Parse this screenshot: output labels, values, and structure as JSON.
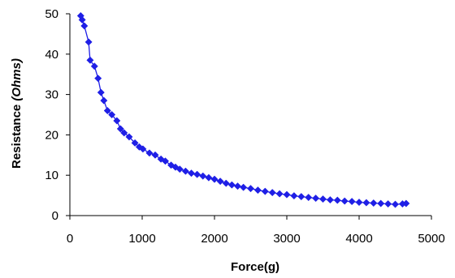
{
  "chart_data": {
    "type": "line",
    "title": "",
    "xlabel": "Force(g)",
    "ylabel_prefix": "Resistance ",
    "ylabel_unit": "(Ohms)",
    "xlim": [
      0,
      5000
    ],
    "ylim": [
      0,
      50
    ],
    "x_ticks": [
      "0",
      "1000",
      "2000",
      "3000",
      "4000",
      "5000"
    ],
    "y_ticks": [
      "0",
      "10",
      "20",
      "30",
      "40",
      "50"
    ],
    "grid": false,
    "legend": "none",
    "marker": "diamond",
    "series": [
      {
        "color": "#1f1fe6",
        "points": [
          [
            150,
            49.5
          ],
          [
            170,
            48.5
          ],
          [
            200,
            47.0
          ],
          [
            260,
            43.0
          ],
          [
            280,
            38.5
          ],
          [
            340,
            37.0
          ],
          [
            390,
            34.0
          ],
          [
            430,
            30.5
          ],
          [
            470,
            28.5
          ],
          [
            520,
            26.0
          ],
          [
            580,
            25.0
          ],
          [
            650,
            23.5
          ],
          [
            700,
            21.5
          ],
          [
            750,
            20.5
          ],
          [
            820,
            19.5
          ],
          [
            900,
            18.0
          ],
          [
            960,
            17.0
          ],
          [
            1010,
            16.5
          ],
          [
            1100,
            15.5
          ],
          [
            1180,
            15.0
          ],
          [
            1260,
            14.0
          ],
          [
            1320,
            13.5
          ],
          [
            1400,
            12.5
          ],
          [
            1460,
            12.0
          ],
          [
            1520,
            11.5
          ],
          [
            1600,
            11.0
          ],
          [
            1680,
            10.5
          ],
          [
            1760,
            10.2
          ],
          [
            1840,
            9.8
          ],
          [
            1920,
            9.4
          ],
          [
            2000,
            9.0
          ],
          [
            2080,
            8.5
          ],
          [
            2160,
            8.0
          ],
          [
            2240,
            7.6
          ],
          [
            2320,
            7.3
          ],
          [
            2400,
            7.0
          ],
          [
            2500,
            6.7
          ],
          [
            2600,
            6.3
          ],
          [
            2700,
            6.0
          ],
          [
            2800,
            5.7
          ],
          [
            2900,
            5.4
          ],
          [
            3000,
            5.2
          ],
          [
            3100,
            4.9
          ],
          [
            3200,
            4.7
          ],
          [
            3300,
            4.5
          ],
          [
            3400,
            4.3
          ],
          [
            3500,
            4.1
          ],
          [
            3600,
            3.9
          ],
          [
            3700,
            3.8
          ],
          [
            3800,
            3.6
          ],
          [
            3900,
            3.5
          ],
          [
            4000,
            3.3
          ],
          [
            4100,
            3.2
          ],
          [
            4200,
            3.1
          ],
          [
            4300,
            3.0
          ],
          [
            4400,
            2.9
          ],
          [
            4500,
            2.8
          ],
          [
            4600,
            2.9
          ],
          [
            4650,
            3.0
          ]
        ]
      }
    ]
  }
}
